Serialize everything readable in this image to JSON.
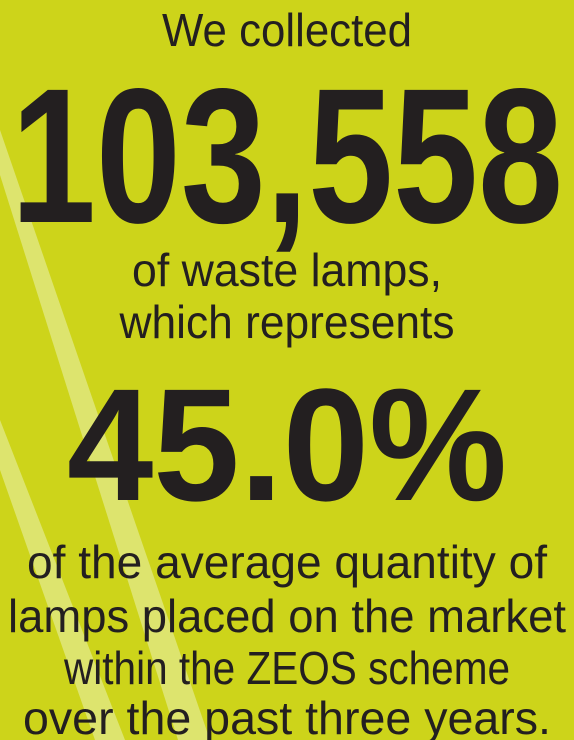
{
  "intro": "We collected",
  "collected_amount": "103,558",
  "middle_lines": [
    "of waste lamps,",
    "which represents"
  ],
  "share": "45.0%",
  "closing_lines": [
    "of the average quantity of",
    "lamps placed on the market",
    "within the ZEOS scheme",
    "over the past three years."
  ]
}
